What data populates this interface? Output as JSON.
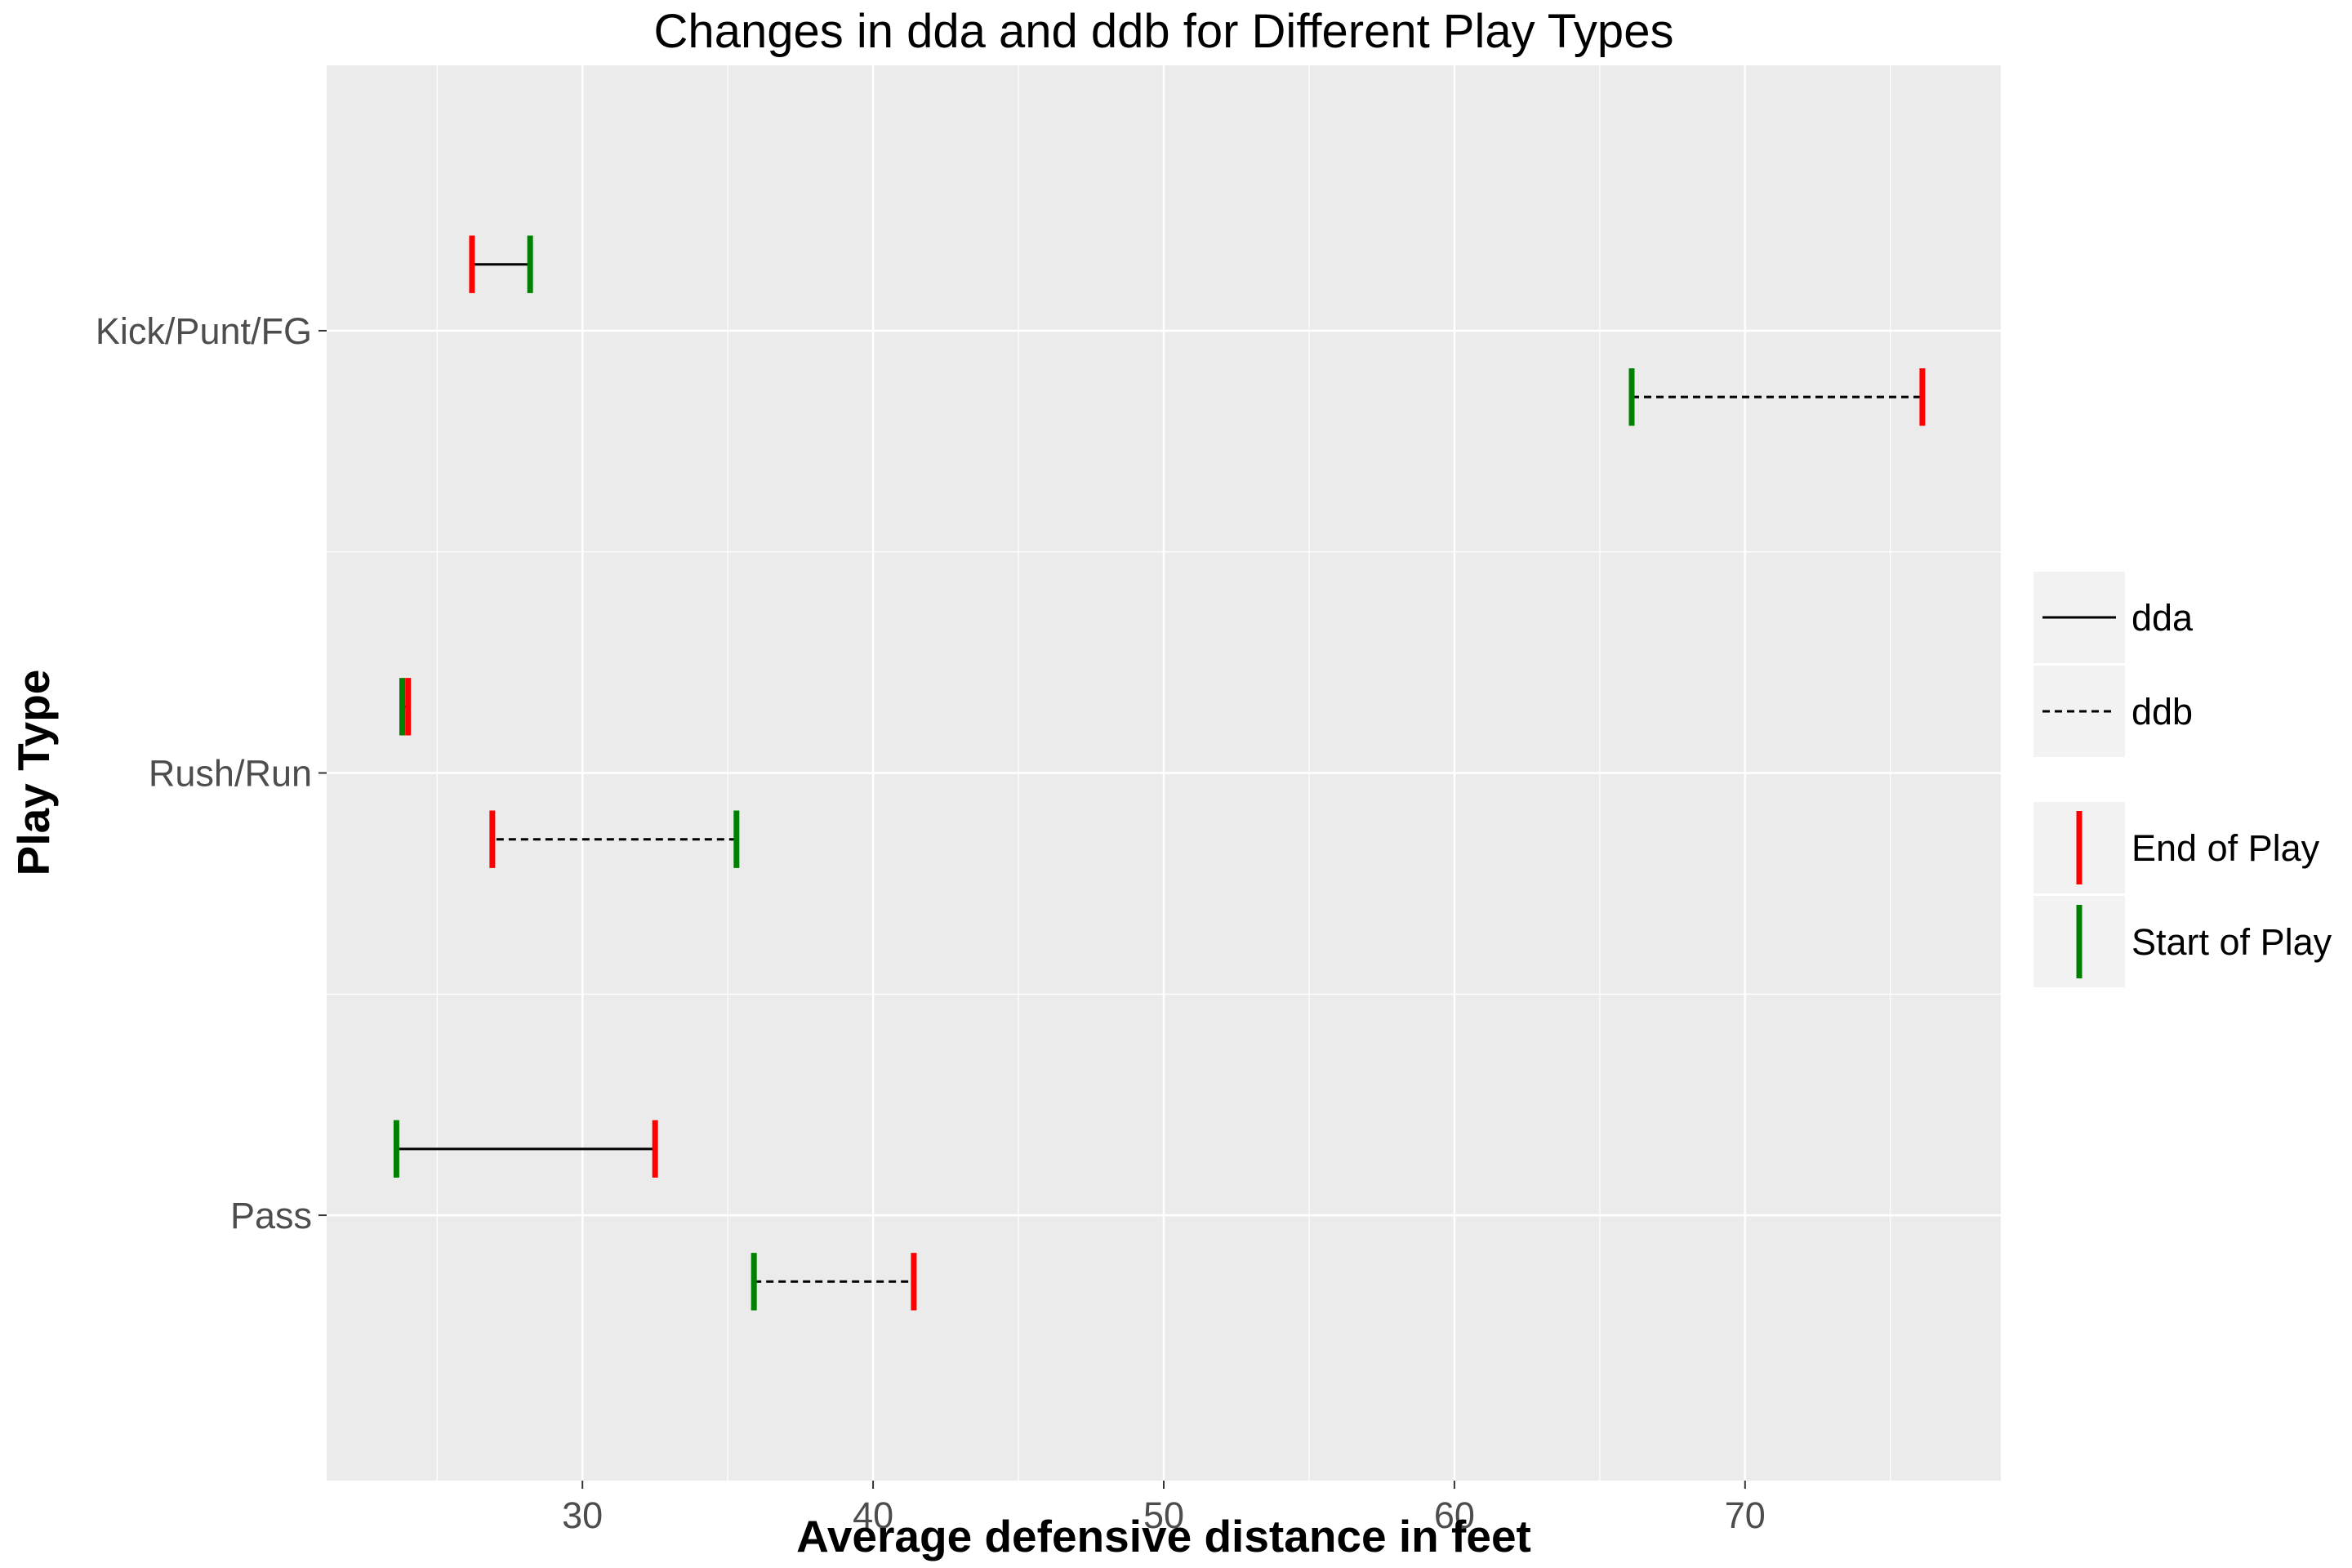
{
  "chart_data": {
    "type": "dumbbell",
    "title": "Changes in dda and ddb for Different Play Types",
    "xlabel": "Average defensive distance in feet",
    "ylabel": "Play Type",
    "xlim": [
      21.2,
      78.8
    ],
    "xticks": [
      30,
      40,
      50,
      60,
      70
    ],
    "grid": true,
    "categories": [
      "Pass",
      "Rush/Run",
      "Kick/Punt/FG"
    ],
    "series": [
      {
        "name": "dda",
        "linetype": "solid",
        "points": [
          {
            "category": "Pass",
            "start": 23.6,
            "end": 32.5
          },
          {
            "category": "Rush/Run",
            "start": 23.8,
            "end": 24.0
          },
          {
            "category": "Kick/Punt/FG",
            "start": 28.2,
            "end": 26.2
          }
        ]
      },
      {
        "name": "ddb",
        "linetype": "dashed",
        "points": [
          {
            "category": "Pass",
            "start": 35.9,
            "end": 41.4
          },
          {
            "category": "Rush/Run",
            "start": 35.3,
            "end": 26.9
          },
          {
            "category": "Kick/Punt/FG",
            "start": 66.1,
            "end": 76.1
          }
        ]
      }
    ],
    "markers": [
      {
        "name": "End of Play",
        "color": "#ff0000"
      },
      {
        "name": "Start of Play",
        "color": "#008000"
      }
    ],
    "legend_position": "right",
    "colors": {
      "panel": "#ebebeb",
      "grid": "#ffffff",
      "line": "#000000"
    }
  }
}
